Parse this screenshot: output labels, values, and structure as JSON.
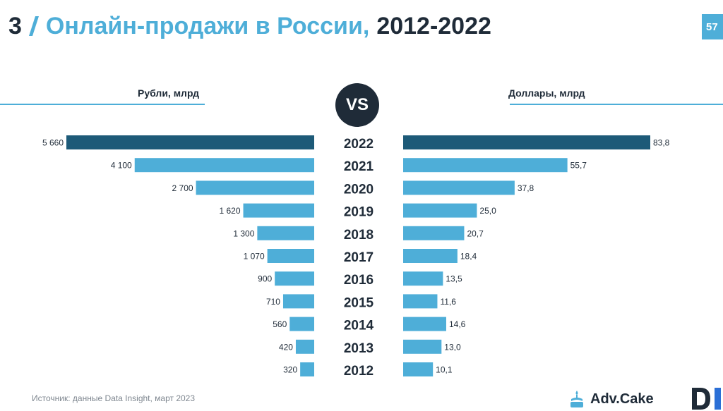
{
  "header": {
    "section_number": "3",
    "title": "Онлайн-продажи в России,",
    "years": "2012-2022",
    "page_number": "57"
  },
  "columns": {
    "left_label": "Рубли, млрд",
    "right_label": "Доллары, млрд",
    "vs_label": "VS"
  },
  "chart_data": {
    "type": "bar",
    "orientation": "horizontal-butterfly",
    "categories": [
      "2022",
      "2021",
      "2020",
      "2019",
      "2018",
      "2017",
      "2016",
      "2015",
      "2014",
      "2013",
      "2012"
    ],
    "series": [
      {
        "name": "Рубли, млрд",
        "values": [
          5660,
          4100,
          2700,
          1620,
          1300,
          1070,
          900,
          710,
          560,
          420,
          320
        ],
        "labels": [
          "5 660",
          "4 100",
          "2 700",
          "1 620",
          "1 300",
          "1 070",
          "900",
          "710",
          "560",
          "420",
          "320"
        ]
      },
      {
        "name": "Доллары, млрд",
        "values": [
          83.8,
          55.7,
          37.8,
          25.0,
          20.7,
          18.4,
          13.5,
          11.6,
          14.6,
          13.0,
          10.1
        ],
        "labels": [
          "83,8",
          "55,7",
          "37,8",
          "25,0",
          "20,7",
          "18,4",
          "13,5",
          "11,6",
          "14,6",
          "13,0",
          "10,1"
        ]
      }
    ],
    "colors": {
      "highlight": "#1d5a78",
      "bar": "#4eaed8"
    },
    "highlight_category": "2022",
    "grid": false
  },
  "footer": {
    "source": "Источник: данные Data Insight, март 2023",
    "brand": "Adv.Cake",
    "brand_icon": "cake-icon",
    "partner_logo": "data-insight-logo"
  },
  "colors": {
    "accent": "#4eaed8",
    "dark": "#1f2b38"
  }
}
